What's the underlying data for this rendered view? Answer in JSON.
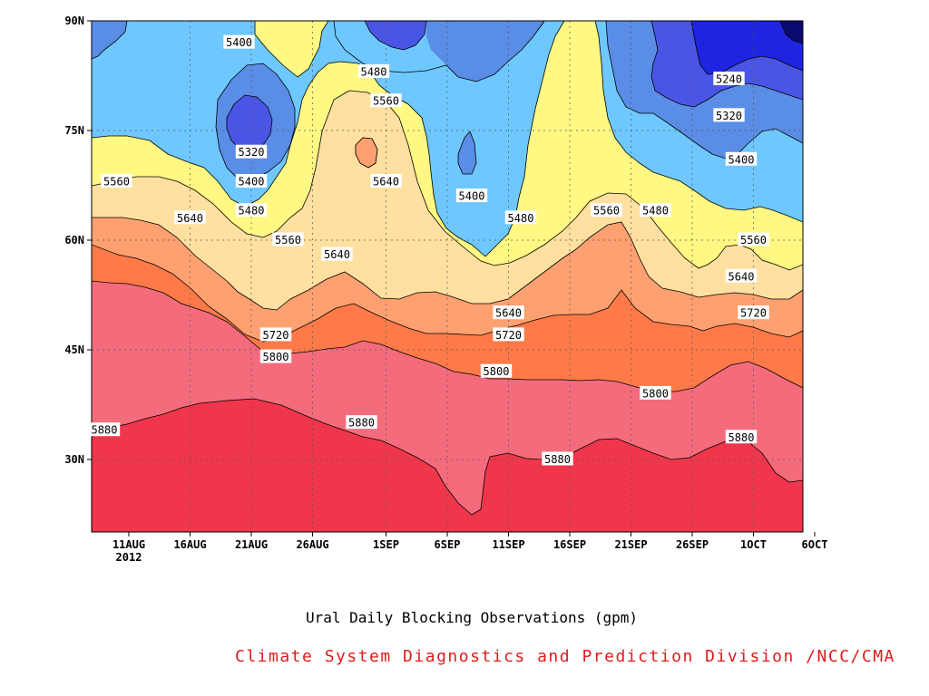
{
  "chart_data": {
    "type": "heatmap",
    "subtype": "filled-contour",
    "subtitle": "Ural Daily Blocking Observations (gpm)",
    "credit": "Climate System Diagnostics and Prediction Division /NCC/CMA",
    "x_ticks": [
      "11AUG",
      "16AUG",
      "21AUG",
      "26AUG",
      "1SEP",
      "6SEP",
      "11SEP",
      "16SEP",
      "21SEP",
      "26SEP",
      "1OCT",
      "6OCT"
    ],
    "x_year_label": "2012",
    "y_ticks": [
      "30N",
      "45N",
      "60N",
      "75N",
      "90N"
    ],
    "y_range": [
      "20N",
      "90N"
    ],
    "grid": true,
    "contour_levels": [
      5160,
      5240,
      5320,
      5400,
      5480,
      5560,
      5640,
      5720,
      5800,
      5880
    ],
    "level_colors": [
      "#0a0a70",
      "#1e24e0",
      "#4a55e6",
      "#5a8de6",
      "#6ec8ff",
      "#fff882",
      "#ffe0a0",
      "#ffa070",
      "#ff7a48",
      "#f46c7c",
      "#f0364a"
    ],
    "contour_labels": [
      {
        "value": "5400",
        "date": "20AUG",
        "lat": "87N"
      },
      {
        "value": "5480",
        "date": "31AUG",
        "lat": "83N"
      },
      {
        "value": "5560",
        "date": "1SEP",
        "lat": "79N"
      },
      {
        "value": "5320",
        "date": "21AUG",
        "lat": "72N"
      },
      {
        "value": "5400",
        "date": "21AUG",
        "lat": "68N"
      },
      {
        "value": "5480",
        "date": "21AUG",
        "lat": "64N"
      },
      {
        "value": "5560",
        "date": "10AUG",
        "lat": "68N"
      },
      {
        "value": "5640",
        "date": "1SEP",
        "lat": "68N"
      },
      {
        "value": "5400",
        "date": "8SEP",
        "lat": "66N"
      },
      {
        "value": "5480",
        "date": "12SEP",
        "lat": "63N"
      },
      {
        "value": "5560",
        "date": "19SEP",
        "lat": "64N"
      },
      {
        "value": "5480",
        "date": "23SEP",
        "lat": "64N"
      },
      {
        "value": "5240",
        "date": "29SEP",
        "lat": "82N"
      },
      {
        "value": "5320",
        "date": "29SEP",
        "lat": "77N"
      },
      {
        "value": "5400",
        "date": "30SEP",
        "lat": "71N"
      },
      {
        "value": "5640",
        "date": "16AUG",
        "lat": "63N"
      },
      {
        "value": "5560",
        "date": "24AUG",
        "lat": "60N"
      },
      {
        "value": "5640",
        "date": "28AUG",
        "lat": "58N"
      },
      {
        "value": "5560",
        "date": "1OCT",
        "lat": "60N"
      },
      {
        "value": "5640",
        "date": "30SEP",
        "lat": "55N"
      },
      {
        "value": "5720",
        "date": "1OCT",
        "lat": "50N"
      },
      {
        "value": "5640",
        "date": "11SEP",
        "lat": "50N"
      },
      {
        "value": "5720",
        "date": "23AUG",
        "lat": "47N"
      },
      {
        "value": "5720",
        "date": "11SEP",
        "lat": "47N"
      },
      {
        "value": "5800",
        "date": "23AUG",
        "lat": "44N"
      },
      {
        "value": "5800",
        "date": "10SEP",
        "lat": "42N"
      },
      {
        "value": "5800",
        "date": "23SEP",
        "lat": "39N"
      },
      {
        "value": "5880",
        "date": "9AUG",
        "lat": "34N"
      },
      {
        "value": "5880",
        "date": "30AUG",
        "lat": "35N"
      },
      {
        "value": "5880",
        "date": "15SEP",
        "lat": "30N"
      },
      {
        "value": "5880",
        "date": "30SEP",
        "lat": "33N"
      }
    ]
  }
}
